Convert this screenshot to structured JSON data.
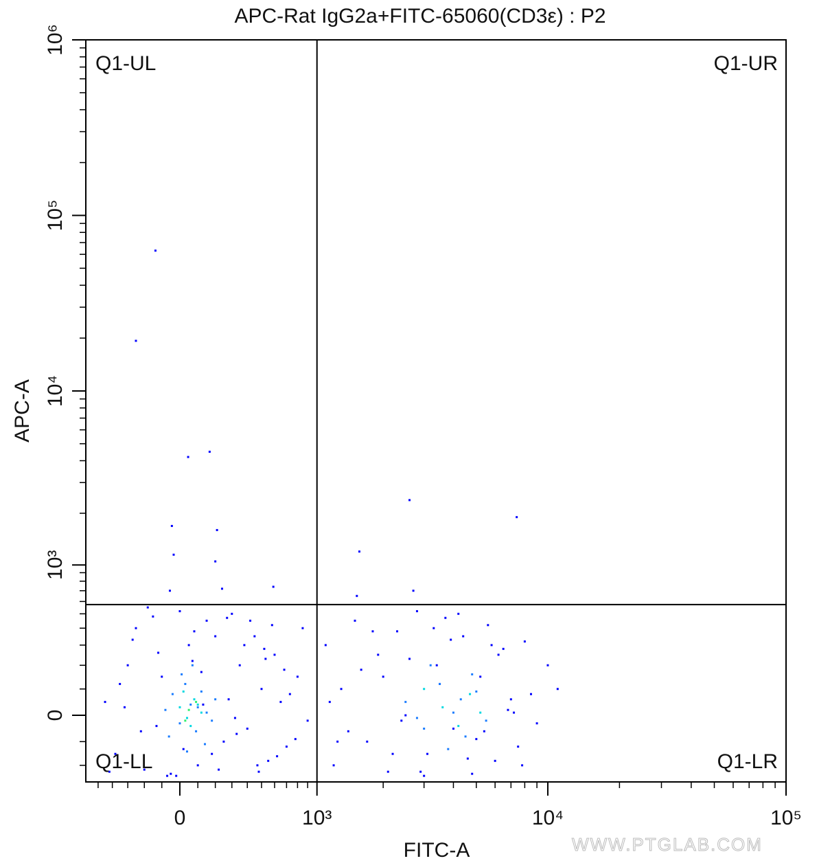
{
  "chart_data": {
    "type": "scatter",
    "title": "APC-Rat IgG2a+FITC-65060(CD3ε) : P2",
    "x_label": "FITC-A",
    "y_label": "APC-A",
    "watermark": "WWW.PTGLAB.COM",
    "xscale": "biexponential",
    "yscale": "biexponential",
    "xlim": [
      -594,
      100000
    ],
    "ylim": [
      -281,
      1000000
    ],
    "xticks": [
      0,
      {
        "value": 1000,
        "label": "10³"
      },
      {
        "value": 10000,
        "label": "10⁴"
      },
      {
        "value": 100000,
        "label": "10⁵"
      }
    ],
    "yticks": [
      0,
      {
        "value": 1000,
        "label": "10³"
      },
      {
        "value": 10000,
        "label": "10⁴"
      },
      {
        "value": 100000,
        "label": "10⁵"
      },
      {
        "value": 1000000,
        "label": "10⁶"
      }
    ],
    "x_minor_ticks": [
      -500,
      -400,
      -300,
      -200,
      -100,
      100,
      200,
      300,
      400,
      500,
      600,
      700,
      800,
      900,
      2000,
      3000,
      4000,
      5000,
      6000,
      7000,
      8000,
      9000,
      20000,
      30000,
      40000,
      50000,
      60000,
      70000,
      80000,
      90000
    ],
    "y_minor_ticks": [
      -200,
      -100,
      100,
      200,
      300,
      400,
      500,
      600,
      700,
      800,
      900,
      2000,
      3000,
      4000,
      5000,
      6000,
      7000,
      8000,
      9000,
      20000,
      30000,
      40000,
      50000,
      60000,
      70000,
      80000,
      90000,
      200000,
      300000,
      400000,
      500000,
      600000,
      700000,
      800000,
      900000
    ],
    "gates": {
      "x": 1000,
      "y": 574
    },
    "quadrant_labels": [
      {
        "text": "Q1-UL",
        "corner": "top-left"
      },
      {
        "text": "Q1-UR",
        "corner": "top-right"
      },
      {
        "text": "Q1-LL",
        "corner": "bottom-left"
      },
      {
        "text": "Q1-LR",
        "corner": "bottom-right"
      }
    ],
    "series": [
      {
        "color": "#0000ff",
        "x": [
          -450,
          -380,
          -300,
          -250,
          -200,
          -150,
          -100,
          -50,
          0,
          50,
          100,
          150,
          200,
          250,
          300,
          350,
          400,
          450,
          500,
          550,
          600,
          650,
          700,
          800,
          900,
          -420,
          -320,
          -220,
          -120,
          -20,
          80,
          180,
          280,
          380,
          480,
          580,
          680,
          780,
          -350,
          -180,
          20,
          120,
          220,
          320,
          420,
          520,
          620,
          -270,
          -70,
          130,
          330,
          530,
          730,
          850,
          -130,
          70,
          270,
          470
        ],
        "y": [
          50,
          -150,
          200,
          400,
          -220,
          480,
          150,
          -240,
          520,
          300,
          -200,
          450,
          350,
          -100,
          500,
          200,
          -50,
          350,
          100,
          -180,
          250,
          50,
          -120,
          150,
          -20,
          -230,
          30,
          -60,
          260,
          -250,
          380,
          -150,
          60,
          300,
          -230,
          420,
          180,
          -90,
          120,
          550,
          -130,
          170,
          -220,
          -10,
          450,
          280,
          -160,
          330,
          -250,
          40,
          -70,
          230,
          80,
          400,
          -40,
          220,
          470,
          -200
        ]
      },
      {
        "color": "#0000ff",
        "x": [
          1100,
          1200,
          1300,
          1500,
          1700,
          1900,
          2100,
          2300,
          2500,
          2800,
          3100,
          3400,
          3700,
          4000,
          4400,
          4800,
          5200,
          5600,
          6000,
          6500,
          7000,
          7500,
          8000,
          9000,
          10000,
          11000,
          1150,
          1400,
          1800,
          2200,
          2600,
          3000,
          3500,
          4200,
          5000,
          5800,
          6800,
          7800,
          1600,
          2400,
          3300,
          4600,
          6200,
          8500,
          1250,
          2000,
          2900,
          3900,
          5400,
          7200
        ],
        "y": [
          300,
          -200,
          100,
          450,
          -100,
          250,
          -230,
          380,
          0,
          520,
          -150,
          200,
          470,
          -50,
          350,
          -240,
          150,
          420,
          -180,
          280,
          60,
          -120,
          320,
          -30,
          200,
          100,
          50,
          -60,
          380,
          -150,
          230,
          -250,
          120,
          500,
          -90,
          300,
          20,
          -200,
          180,
          -20,
          400,
          -170,
          250,
          80,
          -100,
          150,
          -230,
          330,
          -60,
          10
        ]
      },
      {
        "color": "#0000ff",
        "x": [
          -136,
          -250,
          46,
          167,
          -44,
          -34,
          210,
          200,
          2600,
          7400,
          1570,
          -55,
          590,
          1530,
          2700,
          240
        ],
        "y": [
          63000,
          19300,
          4200,
          4500,
          1690,
          1150,
          1600,
          1050,
          2380,
          1900,
          1200,
          700,
          740,
          650,
          700,
          720
        ]
      },
      {
        "color": "#1a7cff",
        "x": [
          -80,
          -40,
          0,
          30,
          60,
          90,
          120,
          150,
          180,
          -60,
          10,
          70,
          140,
          200,
          40,
          100,
          2500,
          3000,
          3500,
          4000,
          4500,
          5000,
          5500,
          3200,
          3800,
          4300,
          4800,
          2800
        ],
        "y": [
          20,
          80,
          -30,
          120,
          40,
          -60,
          90,
          10,
          -20,
          -80,
          160,
          200,
          -110,
          60,
          -140,
          30,
          50,
          -50,
          120,
          10,
          -80,
          90,
          -20,
          200,
          -130,
          60,
          160,
          -10
        ]
      },
      {
        "color": "#00d8e0",
        "x": [
          0,
          40,
          80,
          120,
          20,
          60,
          100,
          3600,
          4200,
          4700,
          3000,
          5200
        ],
        "y": [
          30,
          -10,
          60,
          10,
          90,
          -40,
          40,
          30,
          -40,
          80,
          100,
          10
        ]
      },
      {
        "color": "#30f070",
        "x": [
          50,
          90,
          30
        ],
        "y": [
          20,
          50,
          -20
        ]
      }
    ]
  }
}
